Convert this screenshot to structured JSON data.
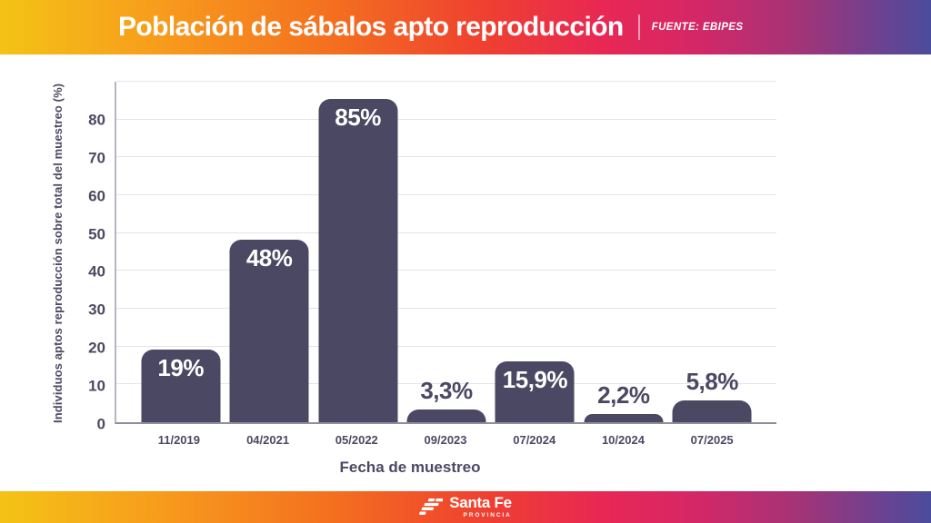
{
  "header": {
    "title": "Población de sábalos apto reproducción",
    "source": "FUENTE: EBIPES"
  },
  "chart_data": {
    "type": "bar",
    "title": "Población de sábalos apto reproducción",
    "xlabel": "Fecha de muestreo",
    "ylabel": "Individuos aptos reproducción sobre total del muestreo (%)",
    "categories": [
      "11/2019",
      "04/2021",
      "05/2022",
      "09/2023",
      "07/2024",
      "10/2024",
      "07/2025"
    ],
    "values": [
      19,
      48,
      85,
      3.3,
      15.9,
      2.2,
      5.8
    ],
    "value_labels": [
      "19%",
      "48%",
      "85%",
      "3,3%",
      "15,9%",
      "2,2%",
      "5,8%"
    ],
    "label_placement": [
      "inside",
      "inside",
      "inside",
      "outside",
      "inside",
      "outside",
      "outside"
    ],
    "ylim": [
      0,
      90
    ],
    "yticks": [
      0,
      10,
      20,
      30,
      40,
      50,
      60,
      70,
      80
    ],
    "gridlines": [
      10,
      20,
      30,
      40,
      50,
      60,
      70,
      80,
      90
    ],
    "grid": true,
    "legend": false,
    "bar_color": "#4a4862",
    "inside_label_color": "#ffffff",
    "outside_label_color": "#4a4862",
    "axis_text_color": "#4b4a63"
  },
  "footer": {
    "logo_text": "Santa Fe",
    "logo_subtext": "PROVINCIA"
  },
  "colors": {
    "gradient_left": "#f4c316",
    "gradient_orange": "#f79a1c",
    "gradient_red": "#ef4030",
    "gradient_crimson": "#e82755",
    "gradient_right": "#4b4c9c",
    "background": "#ffffff"
  }
}
